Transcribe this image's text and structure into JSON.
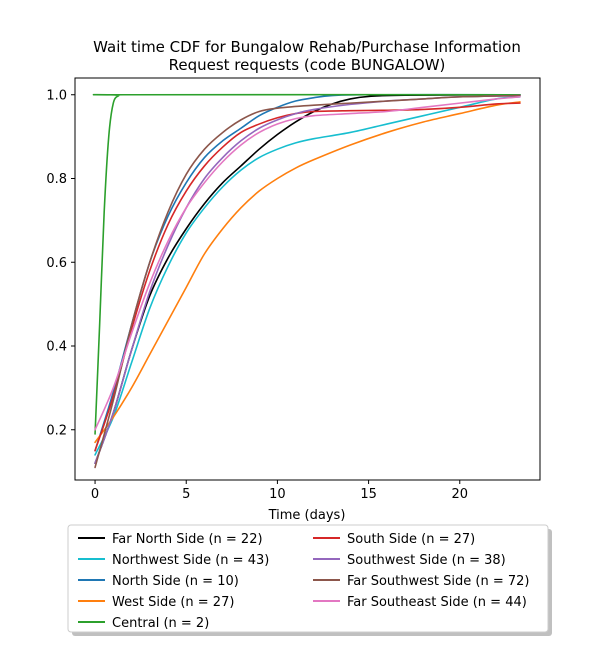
{
  "chart_data": {
    "type": "line",
    "title_line1": "Wait time CDF for Bungalow Rehab/Purchase Information",
    "title_line2": "Request  requests (code BUNGALOW)",
    "xlabel": "Time (days)",
    "ylabel": "",
    "xlim": [
      -1.1,
      24.4
    ],
    "ylim": [
      0.08,
      1.04
    ],
    "x_ticks": [
      0,
      5,
      10,
      15,
      20
    ],
    "y_ticks": [
      0.2,
      0.4,
      0.6,
      0.8,
      1.0
    ],
    "x_tick_labels": [
      "0",
      "5",
      "10",
      "15",
      "20"
    ],
    "y_tick_labels": [
      "0.2",
      "0.4",
      "0.6",
      "0.8",
      "1.0"
    ],
    "grid": false,
    "legend_position": "below plot, two columns",
    "series": [
      {
        "name": "Far North Side (n = 22)",
        "color": "#000000",
        "points": [
          [
            0,
            0.12
          ],
          [
            1,
            0.24
          ],
          [
            2,
            0.39
          ],
          [
            3,
            0.52
          ],
          [
            4,
            0.61
          ],
          [
            5,
            0.68
          ],
          [
            6,
            0.74
          ],
          [
            7,
            0.79
          ],
          [
            8,
            0.83
          ],
          [
            9,
            0.87
          ],
          [
            10,
            0.905
          ],
          [
            11,
            0.935
          ],
          [
            12,
            0.96
          ],
          [
            13,
            0.978
          ],
          [
            14,
            0.99
          ],
          [
            15,
            0.996
          ],
          [
            17,
            0.999
          ],
          [
            23.3,
            1.0
          ]
        ]
      },
      {
        "name": "Northwest Side (n = 43)",
        "color": "#17becf",
        "points": [
          [
            0,
            0.14
          ],
          [
            1,
            0.23
          ],
          [
            2,
            0.36
          ],
          [
            3,
            0.49
          ],
          [
            4,
            0.59
          ],
          [
            5,
            0.67
          ],
          [
            6,
            0.73
          ],
          [
            7,
            0.78
          ],
          [
            8,
            0.82
          ],
          [
            9,
            0.85
          ],
          [
            10,
            0.87
          ],
          [
            11,
            0.885
          ],
          [
            12,
            0.895
          ],
          [
            14,
            0.91
          ],
          [
            16,
            0.93
          ],
          [
            18,
            0.95
          ],
          [
            20,
            0.97
          ],
          [
            22,
            0.99
          ],
          [
            23.3,
            0.995
          ]
        ]
      },
      {
        "name": "North Side (n = 10)",
        "color": "#1f77b4",
        "points": [
          [
            0,
            0.15
          ],
          [
            1,
            0.29
          ],
          [
            2,
            0.45
          ],
          [
            3,
            0.6
          ],
          [
            4,
            0.71
          ],
          [
            5,
            0.79
          ],
          [
            6,
            0.85
          ],
          [
            7,
            0.89
          ],
          [
            8,
            0.92
          ],
          [
            9,
            0.95
          ],
          [
            10,
            0.97
          ],
          [
            11,
            0.985
          ],
          [
            12,
            0.993
          ],
          [
            13,
            0.998
          ],
          [
            15,
            1.0
          ],
          [
            23.3,
            1.0
          ]
        ]
      },
      {
        "name": "West Side (n = 27)",
        "color": "#ff7f0e",
        "points": [
          [
            0,
            0.17
          ],
          [
            1,
            0.23
          ],
          [
            2,
            0.3
          ],
          [
            3,
            0.38
          ],
          [
            4,
            0.46
          ],
          [
            5,
            0.54
          ],
          [
            6,
            0.62
          ],
          [
            7,
            0.68
          ],
          [
            8,
            0.73
          ],
          [
            9,
            0.77
          ],
          [
            10,
            0.8
          ],
          [
            11,
            0.825
          ],
          [
            12,
            0.845
          ],
          [
            14,
            0.88
          ],
          [
            16,
            0.91
          ],
          [
            18,
            0.935
          ],
          [
            20,
            0.955
          ],
          [
            22,
            0.975
          ],
          [
            23.3,
            0.983
          ]
        ]
      },
      {
        "name": "Central (n = 2)",
        "color": "#2ca02c",
        "points": [
          [
            0,
            0.19
          ],
          [
            0.25,
            0.45
          ],
          [
            0.5,
            0.72
          ],
          [
            0.75,
            0.9
          ],
          [
            1,
            0.98
          ],
          [
            1.3,
            0.998
          ],
          [
            1.6,
            1.0
          ],
          [
            23.3,
            1.0
          ]
        ]
      },
      {
        "name": "South Side (n = 27)",
        "color": "#d62728",
        "points": [
          [
            0,
            0.15
          ],
          [
            1,
            0.28
          ],
          [
            2,
            0.44
          ],
          [
            3,
            0.58
          ],
          [
            4,
            0.69
          ],
          [
            5,
            0.77
          ],
          [
            6,
            0.83
          ],
          [
            7,
            0.875
          ],
          [
            8,
            0.91
          ],
          [
            9,
            0.93
          ],
          [
            10,
            0.945
          ],
          [
            11,
            0.955
          ],
          [
            12,
            0.96
          ],
          [
            14,
            0.962
          ],
          [
            16,
            0.963
          ],
          [
            18,
            0.965
          ],
          [
            20,
            0.97
          ],
          [
            22,
            0.978
          ],
          [
            23.3,
            0.98
          ]
        ]
      },
      {
        "name": "Southwest Side (n = 38)",
        "color": "#9467bd",
        "points": [
          [
            0,
            0.12
          ],
          [
            1,
            0.24
          ],
          [
            2,
            0.39
          ],
          [
            3,
            0.53
          ],
          [
            4,
            0.64
          ],
          [
            5,
            0.73
          ],
          [
            6,
            0.8
          ],
          [
            7,
            0.85
          ],
          [
            8,
            0.89
          ],
          [
            9,
            0.92
          ],
          [
            10,
            0.94
          ],
          [
            11,
            0.955
          ],
          [
            12,
            0.965
          ],
          [
            14,
            0.977
          ],
          [
            16,
            0.985
          ],
          [
            18,
            0.99
          ],
          [
            20,
            0.995
          ],
          [
            23.3,
            0.998
          ]
        ]
      },
      {
        "name": "Far Southwest Side (n = 72)",
        "color": "#8c564b",
        "points": [
          [
            0,
            0.11
          ],
          [
            1,
            0.27
          ],
          [
            2,
            0.45
          ],
          [
            3,
            0.6
          ],
          [
            4,
            0.72
          ],
          [
            5,
            0.81
          ],
          [
            6,
            0.87
          ],
          [
            7,
            0.91
          ],
          [
            8,
            0.94
          ],
          [
            9,
            0.96
          ],
          [
            10,
            0.968
          ],
          [
            11,
            0.972
          ],
          [
            12,
            0.975
          ],
          [
            14,
            0.98
          ],
          [
            16,
            0.985
          ],
          [
            18,
            0.99
          ],
          [
            20,
            0.995
          ],
          [
            23.3,
            0.998
          ]
        ]
      },
      {
        "name": "Far Southeast Side (n = 44)",
        "color": "#e377c2",
        "points": [
          [
            0,
            0.2
          ],
          [
            1,
            0.3
          ],
          [
            2,
            0.43
          ],
          [
            3,
            0.55
          ],
          [
            4,
            0.65
          ],
          [
            5,
            0.73
          ],
          [
            6,
            0.79
          ],
          [
            7,
            0.84
          ],
          [
            8,
            0.88
          ],
          [
            9,
            0.91
          ],
          [
            10,
            0.93
          ],
          [
            11,
            0.943
          ],
          [
            12,
            0.95
          ],
          [
            14,
            0.955
          ],
          [
            16,
            0.96
          ],
          [
            18,
            0.97
          ],
          [
            20,
            0.98
          ],
          [
            22,
            0.99
          ],
          [
            23.3,
            0.995
          ]
        ]
      }
    ]
  }
}
